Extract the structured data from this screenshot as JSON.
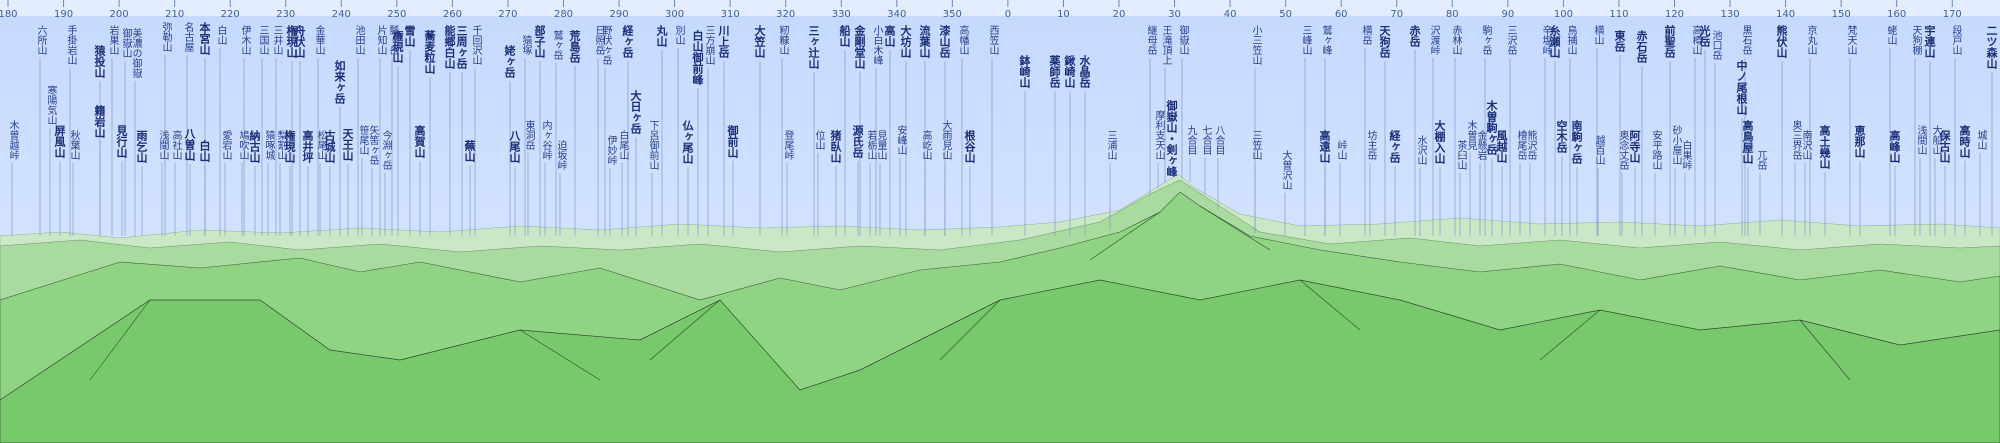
{
  "azimuth_ticks": [
    180,
    190,
    200,
    210,
    220,
    230,
    240,
    250,
    260,
    270,
    280,
    290,
    300,
    310,
    320,
    330,
    340,
    350,
    0,
    10,
    20,
    30,
    40,
    50,
    60,
    70,
    80,
    90,
    100,
    110,
    120,
    130,
    140,
    150,
    160,
    170
  ],
  "labels": [
    "木曽越峠",
    "六所山",
    "寒陽気山",
    "屏風山",
    "手掛岩山",
    "秋葉山",
    "猿投山",
    "籍岩山",
    "岩巣山",
    "見行山",
    "御嶽山",
    "美濃の御嶽",
    "雨乞山",
    "弥勒山",
    "浅間山",
    "高社山",
    "名古屋",
    "八曽山",
    "本宮山",
    "白山",
    "白山",
    "愛宕山",
    "伊木山",
    "鳩吹山",
    "納古山",
    "三国山",
    "猿啄城",
    "三井山",
    "梨割山",
    "権現山",
    "権現山",
    "舟伏山",
    "高井坪",
    "金華山",
    "松尾山",
    "古城山",
    "如来ヶ岳",
    "天王山",
    "池田山",
    "笹尾山",
    "矢筈ヶ岳",
    "片知山",
    "今淵ヶ岳",
    "瓢ヶ岳",
    "権現山",
    "雪山",
    "高賀山",
    "蕎麦粒山",
    "能郷白山",
    "三周ヶ岳",
    "蕪山",
    "千回沢山",
    "姥ヶ岳",
    "猿塚",
    "東洞岳",
    "八尾山",
    "部子山",
    "内ヶ谷峠",
    "鷲ヶ岳",
    "迫坂峠",
    "荒島岳",
    "日照岳",
    "野伏ヶ岳",
    "伊妙峠",
    "白尾山",
    "経ヶ岳",
    "大日ヶ岳",
    "下呂御前山",
    "丸山",
    "別山",
    "仏ヶ尾山",
    "白山御前峰",
    "三方崩山",
    "川上岳",
    "御前山",
    "大笠山",
    "籾糠山",
    "登尾峠",
    "位山",
    "三ヶ辻山",
    "猪臥山",
    "船山",
    "金剛堂山",
    "源氏岳",
    "小白木峰",
    "若栃山",
    "見量山",
    "高山",
    "安峰山",
    "大坊山",
    "流葉山",
    "高屹山",
    "漆山岳",
    "大雨見山",
    "高幡山",
    "根谷山",
    "西笠山",
    "鉢崎山",
    "薬師岳",
    "鍬崎山",
    "水晶岳",
    "三浦山",
    "継母岳",
    "摩利支天山",
    "王滝頂上",
    "御嶽山・剣ヶ峰",
    "御嶽山",
    "九合目",
    "七合目",
    "八合目",
    "小三笠山",
    "三笠山",
    "大曽沢山",
    "三峰山",
    "鷲ヶ峰",
    "高遠山",
    "峠山",
    "横岳",
    "坊主岳",
    "天狗岳",
    "経ヶ岳",
    "赤岳",
    "水沢山",
    "沢渡峠",
    "大棚入山",
    "赤林山",
    "茶臼山",
    "木曽見",
    "金懸岩",
    "駒ヶ岳",
    "木曽駒ヶ岳",
    "風越山",
    "三沢岳",
    "檜尾岳",
    "熊沢岳",
    "辛塩峠",
    "糸瀬山",
    "空木岳",
    "鳥捕山",
    "南駒ヶ岳",
    "横山",
    "越百山",
    "東岳",
    "奥念丈岳",
    "阿寺山",
    "赤石岳",
    "安平路山",
    "前聖岳",
    "砂小屋山",
    "白巣峠",
    "高樽山",
    "光岳",
    "池口岳",
    "黒石岳",
    "中ノ尾根山",
    "高鳥屋山",
    "兀岳",
    "熊伏山",
    "奥三界岳",
    "京丸山",
    "南沢山",
    "高土幾山",
    "梵天山",
    "恵那山",
    "蛯山",
    "高峰山",
    "天狗棚",
    "浅間山",
    "宇連山",
    "大船山",
    "保古山",
    "段戸山",
    "高時山",
    "城山",
    "二ツ森山"
  ]
}
